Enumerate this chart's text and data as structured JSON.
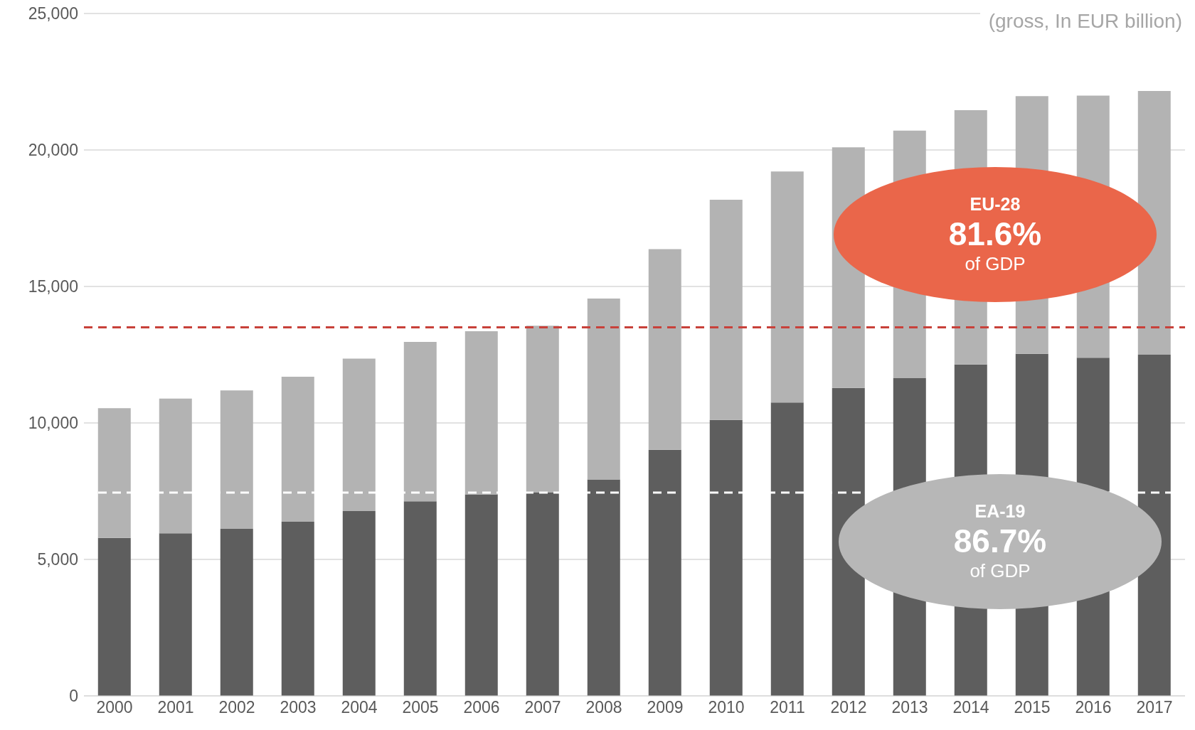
{
  "chart_data": {
    "type": "bar",
    "stacked": true,
    "subtitle": "(gross, In EUR billion)",
    "categories": [
      "2000",
      "2001",
      "2002",
      "2003",
      "2004",
      "2005",
      "2006",
      "2007",
      "2008",
      "2009",
      "2010",
      "2011",
      "2012",
      "2013",
      "2014",
      "2015",
      "2016",
      "2017"
    ],
    "series": [
      {
        "color": "#5e5e5e",
        "values": [
          5790,
          5960,
          6120,
          6380,
          6770,
          7130,
          7380,
          7460,
          7930,
          9020,
          10110,
          10750,
          11280,
          11640,
          12140,
          12530,
          12390,
          12500
        ]
      },
      {
        "color": "#b3b3b3",
        "values": [
          4750,
          4930,
          5070,
          5310,
          5590,
          5840,
          5980,
          6100,
          6630,
          7350,
          8070,
          8460,
          8820,
          9070,
          9320,
          9440,
          9600,
          9660
        ]
      }
    ],
    "ylim": [
      0,
      25000
    ],
    "yticks": [
      0,
      {
        "value": 5000,
        "label": "5,000"
      },
      {
        "value": 10000,
        "label": "10,000"
      },
      {
        "value": 15000,
        "label": "15,000"
      },
      {
        "value": 20000,
        "label": "20,000"
      },
      {
        "value": 25000,
        "label": "25,000"
      }
    ],
    "grid": "y",
    "ref_lines": [
      {
        "axis": "y",
        "value": 13500,
        "color": "#c8413a",
        "line_style": "dashed"
      },
      {
        "axis": "y",
        "value": 7450,
        "color": "#ffffff",
        "line_style": "dashed"
      }
    ],
    "annotations": [
      "EU-28",
      "81.6%",
      "of GDP",
      "EA-19",
      "86.7%",
      "of GDP"
    ]
  }
}
